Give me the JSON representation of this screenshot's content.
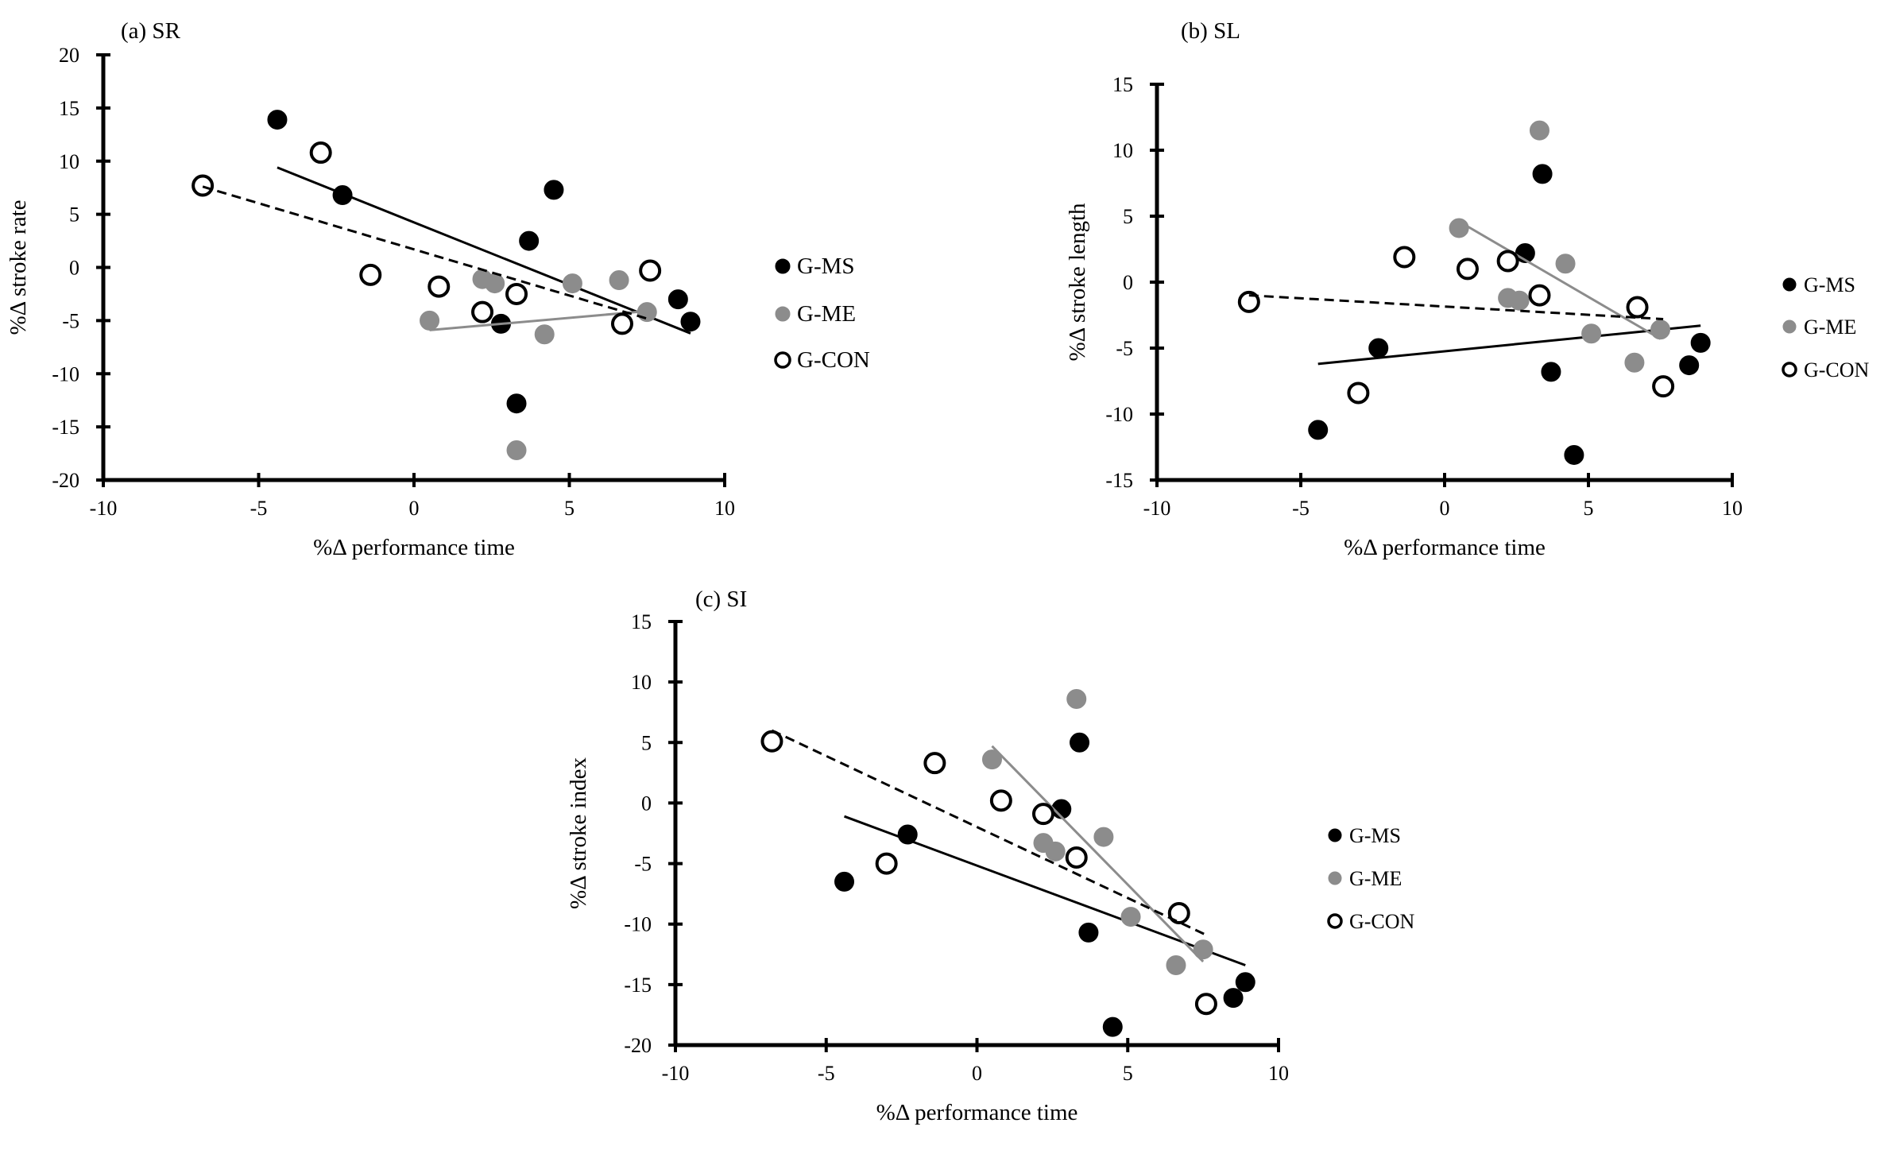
{
  "figure": {
    "legend_labels": [
      "G-MS",
      "G-ME",
      "G-CON"
    ]
  },
  "series_style": {
    "G-MS": {
      "fill": "#000000",
      "stroke": "#000000",
      "line_color": "#000000",
      "dashed": false
    },
    "G-ME": {
      "fill": "#8c8c8c",
      "stroke": "#8c8c8c",
      "line_color": "#8c8c8c",
      "dashed": false
    },
    "G-CON": {
      "fill": "#ffffff",
      "stroke": "#000000",
      "line_color": "#000000",
      "dashed": true
    }
  },
  "chart_data": [
    {
      "type": "scatter",
      "title": "(a) SR",
      "xlabel": "%Δ performance time",
      "ylabel": "%Δ stroke rate",
      "xlim": [
        -10,
        10
      ],
      "ylim": [
        -20,
        20
      ],
      "x_ticks": [
        -10,
        -5,
        0,
        5,
        10
      ],
      "y_ticks": [
        -20,
        -15,
        -10,
        -5,
        0,
        5,
        10,
        15,
        20
      ],
      "series": [
        {
          "name": "G-MS",
          "points": [
            [
              -4.4,
              13.9
            ],
            [
              -2.3,
              6.8
            ],
            [
              4.5,
              7.3
            ],
            [
              3.7,
              2.5
            ],
            [
              2.8,
              -5.3
            ],
            [
              8.5,
              -3.0
            ],
            [
              8.9,
              -5.1
            ],
            [
              3.3,
              -12.8
            ]
          ],
          "trend": [
            [
              -4.4,
              9.4
            ],
            [
              8.9,
              -6.2
            ]
          ]
        },
        {
          "name": "G-ME",
          "points": [
            [
              0.5,
              -5.0
            ],
            [
              2.2,
              -1.1
            ],
            [
              2.6,
              -1.5
            ],
            [
              4.2,
              -6.3
            ],
            [
              5.1,
              -1.5
            ],
            [
              6.6,
              -1.2
            ],
            [
              7.5,
              -4.2
            ],
            [
              3.3,
              -17.2
            ]
          ],
          "trend": [
            [
              0.5,
              -5.9
            ],
            [
              7.5,
              -4.1
            ]
          ]
        },
        {
          "name": "G-CON",
          "points": [
            [
              -6.8,
              7.7
            ],
            [
              -3.0,
              10.8
            ],
            [
              -1.4,
              -0.7
            ],
            [
              0.8,
              -1.8
            ],
            [
              2.2,
              -4.2
            ],
            [
              3.3,
              -2.5
            ],
            [
              6.7,
              -5.3
            ],
            [
              7.6,
              -0.3
            ]
          ],
          "trend": [
            [
              -6.8,
              7.6
            ],
            [
              7.6,
              -4.9
            ]
          ]
        }
      ]
    },
    {
      "type": "scatter",
      "title": "(b) SL",
      "xlabel": "%Δ performance time",
      "ylabel": "%Δ stroke length",
      "xlim": [
        -10,
        10
      ],
      "ylim": [
        -15,
        15
      ],
      "x_ticks": [
        -10,
        -5,
        0,
        5,
        10
      ],
      "y_ticks": [
        -15,
        -10,
        -5,
        0,
        5,
        10,
        15
      ],
      "series": [
        {
          "name": "G-MS",
          "points": [
            [
              -4.4,
              -11.2
            ],
            [
              -2.3,
              -5.0
            ],
            [
              2.8,
              2.2
            ],
            [
              3.4,
              8.2
            ],
            [
              3.7,
              -6.8
            ],
            [
              4.5,
              -13.1
            ],
            [
              8.5,
              -6.3
            ],
            [
              8.9,
              -4.6
            ]
          ],
          "trend": [
            [
              -4.4,
              -6.2
            ],
            [
              8.9,
              -3.3
            ]
          ]
        },
        {
          "name": "G-ME",
          "points": [
            [
              0.5,
              4.1
            ],
            [
              2.2,
              -1.2
            ],
            [
              2.6,
              -1.4
            ],
            [
              3.3,
              11.5
            ],
            [
              4.2,
              1.4
            ],
            [
              5.1,
              -3.9
            ],
            [
              6.6,
              -6.1
            ],
            [
              7.5,
              -3.6
            ]
          ],
          "trend": [
            [
              0.5,
              4.6
            ],
            [
              7.5,
              -4.3
            ]
          ]
        },
        {
          "name": "G-CON",
          "points": [
            [
              -6.8,
              -1.5
            ],
            [
              -3.0,
              -8.4
            ],
            [
              -1.4,
              1.9
            ],
            [
              0.8,
              1.0
            ],
            [
              2.2,
              1.6
            ],
            [
              3.3,
              -1.0
            ],
            [
              6.7,
              -1.9
            ],
            [
              7.6,
              -7.9
            ]
          ],
          "trend": [
            [
              -6.8,
              -1.0
            ],
            [
              7.6,
              -2.8
            ]
          ]
        }
      ]
    },
    {
      "type": "scatter",
      "title": "(c) SI",
      "xlabel": "%Δ performance time",
      "ylabel": "%Δ stroke index",
      "xlim": [
        -10,
        10
      ],
      "ylim": [
        -20,
        15
      ],
      "x_ticks": [
        -10,
        -5,
        0,
        5,
        10
      ],
      "y_ticks": [
        -20,
        -15,
        -10,
        -5,
        0,
        5,
        10,
        15
      ],
      "series": [
        {
          "name": "G-MS",
          "points": [
            [
              -4.4,
              -6.5
            ],
            [
              -2.3,
              -2.6
            ],
            [
              2.8,
              -0.5
            ],
            [
              3.4,
              5.0
            ],
            [
              3.7,
              -10.7
            ],
            [
              4.5,
              -18.5
            ],
            [
              8.5,
              -16.1
            ],
            [
              8.9,
              -14.8
            ]
          ],
          "trend": [
            [
              -4.4,
              -1.1
            ],
            [
              8.9,
              -13.4
            ]
          ]
        },
        {
          "name": "G-ME",
          "points": [
            [
              0.5,
              3.6
            ],
            [
              2.2,
              -3.3
            ],
            [
              2.6,
              -4.0
            ],
            [
              3.3,
              8.6
            ],
            [
              4.2,
              -2.8
            ],
            [
              5.1,
              -9.4
            ],
            [
              6.6,
              -13.4
            ],
            [
              7.5,
              -12.1
            ]
          ],
          "trend": [
            [
              0.5,
              4.7
            ],
            [
              7.5,
              -13.1
            ]
          ]
        },
        {
          "name": "G-CON",
          "points": [
            [
              -6.8,
              5.1
            ],
            [
              -3.0,
              -5.0
            ],
            [
              -1.4,
              3.3
            ],
            [
              0.8,
              0.2
            ],
            [
              2.2,
              -0.9
            ],
            [
              3.3,
              -4.5
            ],
            [
              6.7,
              -9.1
            ],
            [
              7.6,
              -16.6
            ]
          ],
          "trend": [
            [
              -6.8,
              6.0
            ],
            [
              7.6,
              -10.9
            ]
          ]
        }
      ]
    }
  ]
}
